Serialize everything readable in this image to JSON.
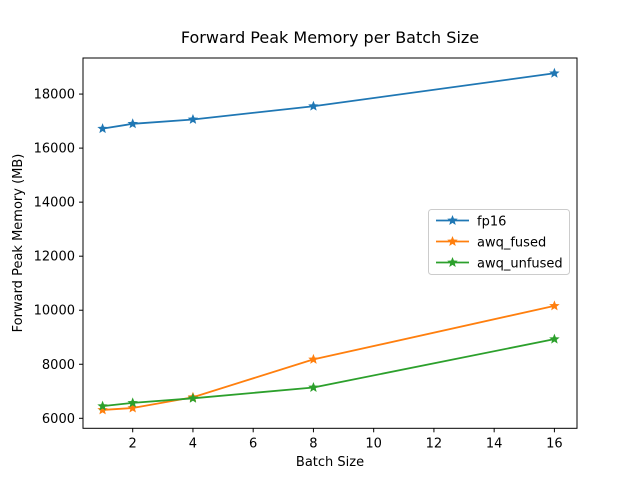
{
  "chart_data": {
    "type": "line",
    "title": "Forward Peak Memory per Batch Size",
    "xlabel": "Batch Size",
    "ylabel": "Forward Peak Memory (MB)",
    "x": [
      1,
      2,
      4,
      8,
      16
    ],
    "series": [
      {
        "name": "fp16",
        "color": "#1f77b4",
        "values": [
          16720,
          16900,
          17060,
          17550,
          18770
        ]
      },
      {
        "name": "awq_fused",
        "color": "#ff7f0e",
        "values": [
          6310,
          6380,
          6780,
          8180,
          10160
        ]
      },
      {
        "name": "awq_unfused",
        "color": "#2ca02c",
        "values": [
          6450,
          6570,
          6740,
          7140,
          8930
        ]
      }
    ],
    "xticks": [
      2,
      4,
      6,
      8,
      10,
      12,
      14,
      16
    ],
    "yticks": [
      6000,
      8000,
      10000,
      12000,
      14000,
      16000,
      18000
    ],
    "xlim": [
      0.35,
      16.75
    ],
    "ylim": [
      5630,
      19335
    ],
    "marker": "star",
    "grid": false,
    "legend_position": "center right",
    "background_color": "#ffffff",
    "spine_color": "#000000",
    "legend_border_color": "#cccccc",
    "legend_fill_color": "#ffffff"
  }
}
